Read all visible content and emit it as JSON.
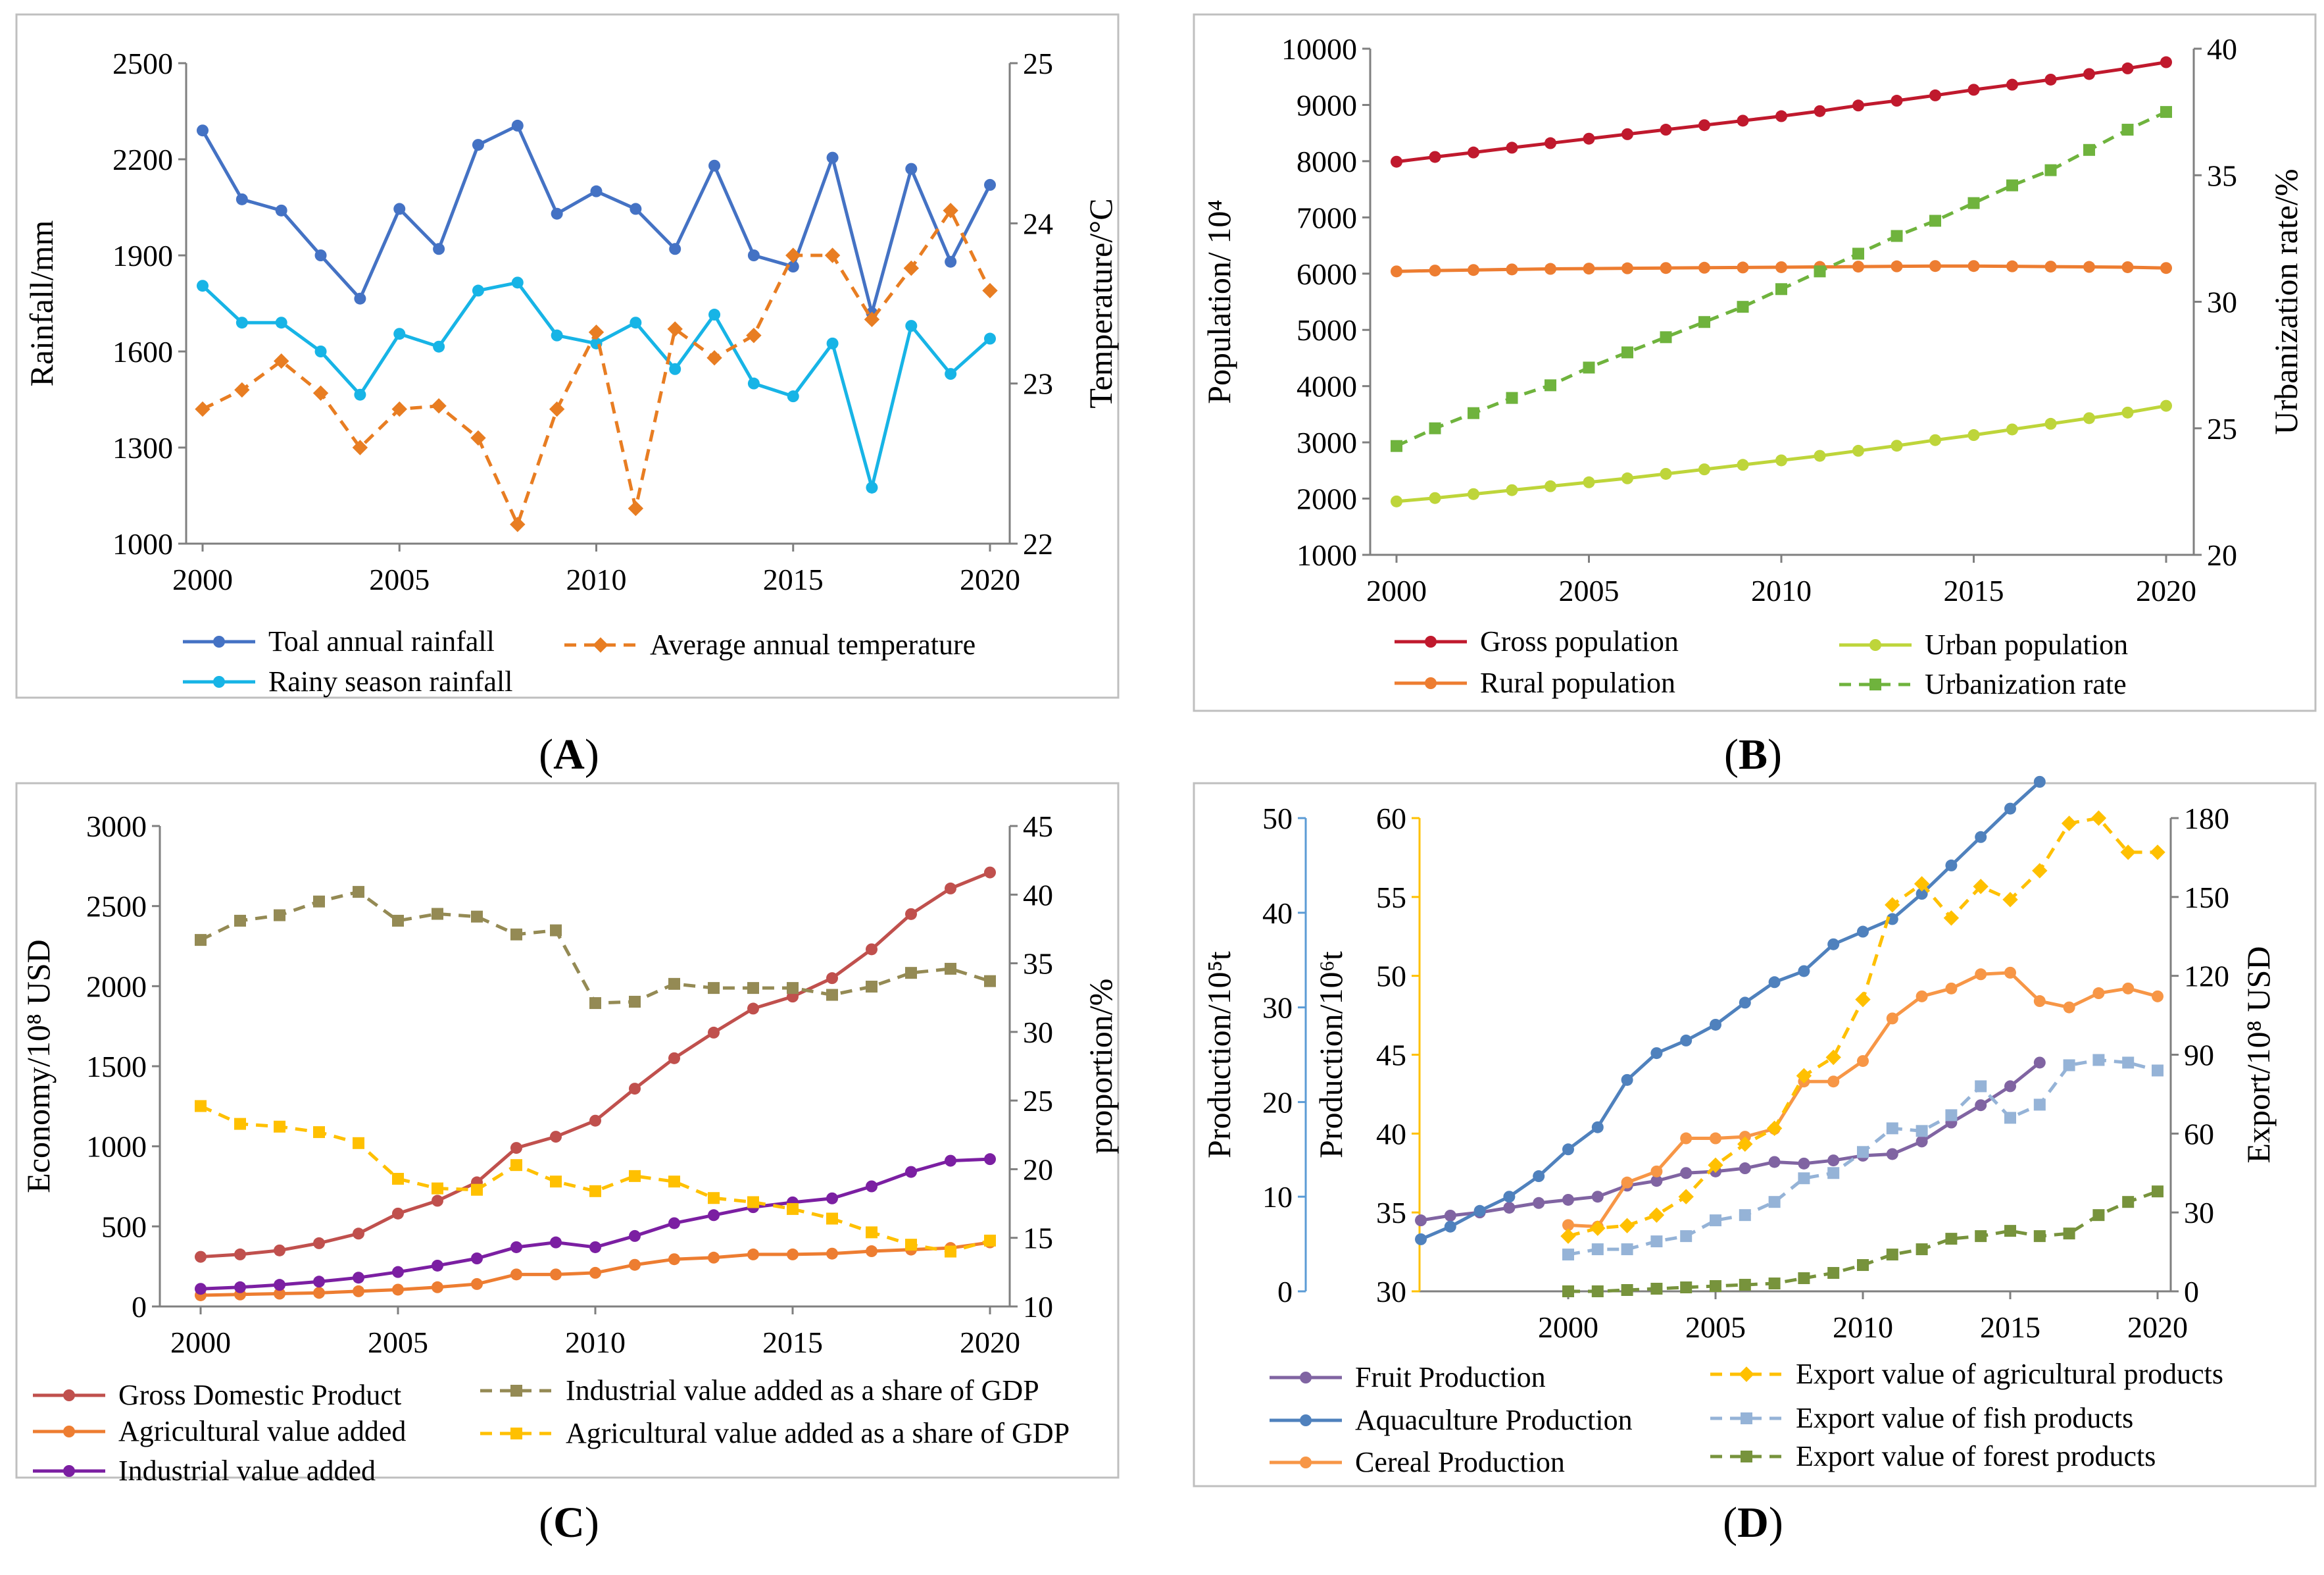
{
  "chart_data": [
    {
      "type": "line",
      "panel_label": "A",
      "x_ticks": [
        "2000",
        "2005",
        "2010",
        "2015",
        "2020"
      ],
      "xlim": [
        2000,
        2020
      ],
      "ylabel_left": "Rainfall/mm",
      "ylabel_right": "Temperature/°C",
      "ylim_left": [
        1000,
        2500
      ],
      "ylim_right": [
        22,
        25
      ],
      "yticks_left": [
        "1000",
        "1300",
        "1600",
        "1900",
        "2200",
        "2500"
      ],
      "yticks_right": [
        "22",
        "23",
        "24",
        "25"
      ],
      "x": [
        2000,
        2001,
        2002,
        2003,
        2004,
        2005,
        2006,
        2007,
        2008,
        2009,
        2010,
        2011,
        2012,
        2013,
        2014,
        2015,
        2016,
        2017,
        2018,
        2019,
        2020
      ],
      "series": [
        {
          "name": "Toal annual rainfall",
          "axis": "left",
          "color": "#4472c4",
          "dash": false,
          "marker": "circle",
          "values": [
            2290,
            2075,
            2040,
            1900,
            1765,
            2045,
            1920,
            2245,
            2305,
            2030,
            2100,
            2045,
            1920,
            2180,
            1900,
            1865,
            2205,
            1720,
            2170,
            1880,
            2120
          ]
        },
        {
          "name": "Rainy season rainfall",
          "axis": "left",
          "color": "#17b4e6",
          "dash": false,
          "marker": "circle",
          "values": [
            1805,
            1690,
            1690,
            1600,
            1465,
            1655,
            1615,
            1790,
            1815,
            1650,
            1625,
            1690,
            1545,
            1715,
            1500,
            1460,
            1625,
            1175,
            1680,
            1530,
            1640
          ]
        },
        {
          "name": "Average annual temperature",
          "axis": "right",
          "color": "#e87d22",
          "dash": true,
          "marker": "diamond",
          "values": [
            22.84,
            22.96,
            23.14,
            22.94,
            22.6,
            22.84,
            22.86,
            22.66,
            22.12,
            22.84,
            23.32,
            22.22,
            23.34,
            23.16,
            23.3,
            23.8,
            23.8,
            23.4,
            23.72,
            24.08,
            23.58
          ]
        }
      ],
      "legend": [
        {
          "name": "Toal annual rainfall",
          "color": "#4472c4",
          "dash": false,
          "marker": "circle"
        },
        {
          "name": "Average annual temperature",
          "color": "#e87d22",
          "dash": true,
          "marker": "diamond"
        },
        {
          "name": "Rainy season rainfall",
          "color": "#17b4e6",
          "dash": false,
          "marker": "circle"
        }
      ]
    },
    {
      "type": "line",
      "panel_label": "B",
      "x_ticks": [
        "2000",
        "2005",
        "2010",
        "2015",
        "2020"
      ],
      "xlim": [
        2000,
        2020
      ],
      "ylabel_left": "Population/ 10⁴",
      "ylabel_right": "Urbanization rate/%",
      "ylim_left": [
        1000,
        10000
      ],
      "ylim_right": [
        20,
        40
      ],
      "yticks_left": [
        "1000",
        "2000",
        "3000",
        "4000",
        "5000",
        "6000",
        "7000",
        "8000",
        "9000",
        "10000"
      ],
      "yticks_right": [
        "20",
        "25",
        "30",
        "35",
        "40"
      ],
      "x": [
        2000,
        2001,
        2002,
        2003,
        2004,
        2005,
        2006,
        2007,
        2008,
        2009,
        2010,
        2011,
        2012,
        2013,
        2014,
        2015,
        2016,
        2017,
        2018,
        2019,
        2020
      ],
      "series": [
        {
          "name": "Gross population",
          "axis": "left",
          "color": "#c0192d",
          "dash": false,
          "marker": "circle",
          "values": [
            7990,
            8075,
            8155,
            8240,
            8320,
            8400,
            8480,
            8560,
            8640,
            8720,
            8800,
            8890,
            8990,
            9075,
            9170,
            9270,
            9360,
            9450,
            9550,
            9650,
            9760
          ]
        },
        {
          "name": "Rural population",
          "axis": "left",
          "color": "#ed7d31",
          "dash": false,
          "marker": "circle",
          "values": [
            6040,
            6055,
            6065,
            6075,
            6085,
            6090,
            6095,
            6100,
            6105,
            6110,
            6115,
            6120,
            6125,
            6130,
            6135,
            6135,
            6130,
            6125,
            6120,
            6115,
            6100
          ]
        },
        {
          "name": "Urban population",
          "axis": "left",
          "color": "#bed53a",
          "dash": false,
          "marker": "circle",
          "values": [
            1950,
            2010,
            2080,
            2150,
            2220,
            2290,
            2360,
            2440,
            2520,
            2600,
            2680,
            2760,
            2850,
            2940,
            3040,
            3130,
            3230,
            3330,
            3430,
            3530,
            3650
          ]
        },
        {
          "name": "Urbanization rate",
          "axis": "right",
          "color": "#6fb33d",
          "dash": true,
          "marker": "square",
          "values": [
            24.3,
            25.0,
            25.6,
            26.2,
            26.7,
            27.4,
            28.0,
            28.6,
            29.2,
            29.8,
            30.5,
            31.2,
            31.9,
            32.6,
            33.2,
            33.9,
            34.6,
            35.2,
            36.0,
            36.8,
            37.5
          ]
        }
      ],
      "legend": [
        {
          "name": "Gross population",
          "color": "#c0192d",
          "dash": false,
          "marker": "circle"
        },
        {
          "name": "Urban population",
          "color": "#bed53a",
          "dash": false,
          "marker": "circle"
        },
        {
          "name": "Rural population",
          "color": "#ed7d31",
          "dash": false,
          "marker": "circle"
        },
        {
          "name": "Urbanization rate",
          "color": "#6fb33d",
          "dash": true,
          "marker": "square"
        }
      ]
    },
    {
      "type": "line",
      "panel_label": "C",
      "x_ticks": [
        "2000",
        "2005",
        "2010",
        "2015",
        "2020"
      ],
      "xlim": [
        2000,
        2020
      ],
      "ylabel_left": "Economy/10⁸ USD",
      "ylabel_right": "proportion/%",
      "ylim_left": [
        0,
        3000
      ],
      "ylim_right": [
        10,
        45
      ],
      "yticks_left": [
        "0",
        "500",
        "1000",
        "1500",
        "2000",
        "2500",
        "3000"
      ],
      "yticks_right": [
        "10",
        "15",
        "20",
        "25",
        "30",
        "35",
        "40",
        "45"
      ],
      "x": [
        2000,
        2001,
        2002,
        2003,
        2004,
        2005,
        2006,
        2007,
        2008,
        2009,
        2010,
        2011,
        2012,
        2013,
        2014,
        2015,
        2016,
        2017,
        2018,
        2019,
        2020
      ],
      "series": [
        {
          "name": "Gross Domestic Product",
          "axis": "left",
          "color": "#c0504d",
          "dash": false,
          "marker": "circle",
          "values": [
            310,
            325,
            350,
            395,
            455,
            580,
            660,
            775,
            990,
            1060,
            1160,
            1360,
            1550,
            1710,
            1860,
            1935,
            2050,
            2230,
            2450,
            2610,
            2710
          ]
        },
        {
          "name": "Agricultural value added",
          "axis": "left",
          "color": "#ed7d31",
          "dash": false,
          "marker": "circle",
          "values": [
            70,
            75,
            80,
            85,
            95,
            105,
            120,
            140,
            200,
            200,
            210,
            260,
            295,
            305,
            325,
            325,
            330,
            345,
            355,
            365,
            400
          ]
        },
        {
          "name": "Industrial value added",
          "axis": "left",
          "color": "#7b1fa2",
          "dash": false,
          "marker": "circle",
          "values": [
            110,
            120,
            135,
            155,
            180,
            215,
            255,
            300,
            370,
            400,
            370,
            440,
            520,
            570,
            620,
            650,
            675,
            750,
            840,
            910,
            920
          ]
        },
        {
          "name": "Industrial value added as a share of GDP",
          "axis": "right",
          "color": "#948a54",
          "dash": true,
          "marker": "square",
          "values": [
            36.7,
            38.1,
            38.5,
            39.5,
            40.2,
            38.1,
            38.6,
            38.4,
            37.1,
            37.4,
            32.1,
            32.2,
            33.5,
            33.2,
            33.2,
            33.2,
            32.7,
            33.3,
            34.3,
            34.6,
            33.7
          ]
        },
        {
          "name": "Agricultural value added as a share of GDP",
          "axis": "right",
          "color": "#ffc000",
          "dash": true,
          "marker": "square",
          "values": [
            24.6,
            23.3,
            23.1,
            22.7,
            21.9,
            19.3,
            18.6,
            18.5,
            20.3,
            19.1,
            18.4,
            19.5,
            19.1,
            17.9,
            17.6,
            17.1,
            16.4,
            15.4,
            14.5,
            14.0,
            14.8
          ]
        }
      ],
      "legend": [
        {
          "name": "Gross Domestic Product",
          "color": "#c0504d",
          "dash": false,
          "marker": "circle"
        },
        {
          "name": "Industrial value added as a share of GDP",
          "color": "#948a54",
          "dash": true,
          "marker": "square"
        },
        {
          "name": "Agricultural value added",
          "color": "#ed7d31",
          "dash": false,
          "marker": "circle"
        },
        {
          "name": "Agricultural value added as a share of GDP",
          "color": "#ffc000",
          "dash": true,
          "marker": "square"
        },
        {
          "name": "Industrial value added",
          "color": "#7b1fa2",
          "dash": false,
          "marker": "circle"
        }
      ]
    },
    {
      "type": "line",
      "panel_label": "D",
      "x_ticks": [
        "2000",
        "2005",
        "2010",
        "2015",
        "2020"
      ],
      "xlim": [
        1995,
        2020
      ],
      "ylabel_outer": "Production/10⁵t",
      "ylabel_inner": "Production/10⁶t",
      "ylabel_right": "Export/10⁸ USD",
      "ylim_outer": [
        0,
        50
      ],
      "ylim_inner": [
        30,
        60
      ],
      "ylim_right": [
        0,
        180
      ],
      "yticks_outer": [
        "0",
        "10",
        "20",
        "30",
        "40",
        "50"
      ],
      "yticks_inner": [
        "30",
        "35",
        "40",
        "45",
        "50",
        "55",
        "60"
      ],
      "yticks_right": [
        "0",
        "30",
        "60",
        "90",
        "120",
        "150",
        "180"
      ],
      "series": [
        {
          "name": "Fruit Production",
          "axis": "inner",
          "color": "#8064a2",
          "dash": false,
          "marker": "circle",
          "x": [
            1995,
            1996,
            1997,
            1998,
            1999,
            2000,
            2001,
            2002,
            2003,
            2004,
            2005,
            2006,
            2007,
            2008,
            2009,
            2010,
            2011,
            2012,
            2013,
            2014,
            2015,
            2016
          ],
          "values": [
            34.5,
            34.8,
            35.0,
            35.3,
            35.6,
            35.8,
            36.0,
            36.7,
            37.0,
            37.5,
            37.6,
            37.8,
            38.2,
            38.1,
            38.3,
            38.6,
            38.7,
            39.5,
            40.7,
            41.8,
            43.0,
            44.5
          ]
        },
        {
          "name": "Aquaculture Production",
          "axis": "inner",
          "color": "#4f81bd",
          "dash": false,
          "marker": "circle",
          "x": [
            1995,
            1996,
            1997,
            1998,
            1999,
            2000,
            2001,
            2002,
            2003,
            2004,
            2005,
            2006,
            2007,
            2008,
            2009,
            2010,
            2011,
            2012,
            2013,
            2014,
            2015,
            2016
          ],
          "values": [
            33.3,
            34.1,
            35.1,
            36.0,
            37.3,
            39.0,
            40.4,
            43.4,
            45.1,
            45.9,
            46.9,
            48.3,
            49.6,
            50.3,
            52.0,
            52.8,
            53.6,
            55.2,
            57.0,
            58.8,
            60.6,
            62.3
          ]
        },
        {
          "name": "Cereal Production",
          "axis": "inner",
          "color": "#f79646",
          "dash": false,
          "marker": "circle",
          "x": [
            2000,
            2001,
            2002,
            2003,
            2004,
            2005,
            2006,
            2007,
            2008,
            2009,
            2010,
            2011,
            2012,
            2013,
            2014,
            2015,
            2016,
            2017,
            2018,
            2019,
            2020
          ],
          "values": [
            34.2,
            34.1,
            36.9,
            37.6,
            39.7,
            39.7,
            39.8,
            40.3,
            43.3,
            43.3,
            44.6,
            47.3,
            48.7,
            49.2,
            50.1,
            50.2,
            48.4,
            48.0,
            48.9,
            49.2,
            48.7
          ]
        },
        {
          "name": "Export value of agricultural products",
          "axis": "right",
          "color": "#ffc000",
          "dash": true,
          "marker": "diamond",
          "x": [
            2000,
            2001,
            2002,
            2003,
            2004,
            2005,
            2006,
            2007,
            2008,
            2009,
            2010,
            2011,
            2012,
            2013,
            2014,
            2015,
            2016,
            2017,
            2018,
            2019,
            2020
          ],
          "values": [
            21,
            24,
            25,
            29,
            36,
            48,
            56,
            62,
            82,
            89,
            111,
            147,
            155,
            142,
            154,
            149,
            160,
            178,
            180,
            167,
            167
          ]
        },
        {
          "name": "Export value of fish products",
          "axis": "right",
          "color": "#95b3d7",
          "dash": true,
          "marker": "square",
          "x": [
            2000,
            2001,
            2002,
            2003,
            2004,
            2005,
            2006,
            2007,
            2008,
            2009,
            2010,
            2011,
            2012,
            2013,
            2014,
            2015,
            2016,
            2017,
            2018,
            2019,
            2020
          ],
          "values": [
            14,
            16,
            16,
            19,
            21,
            27,
            29,
            34,
            43,
            45,
            53,
            62,
            61,
            67,
            78,
            66,
            71,
            86,
            88,
            87,
            84
          ]
        },
        {
          "name": "Export value of forest products",
          "axis": "right",
          "color": "#77933c",
          "dash": true,
          "marker": "square",
          "x": [
            2000,
            2001,
            2002,
            2003,
            2004,
            2005,
            2006,
            2007,
            2008,
            2009,
            2010,
            2011,
            2012,
            2013,
            2014,
            2015,
            2016,
            2017,
            2018,
            2019,
            2020
          ],
          "values": [
            0,
            0,
            0.5,
            1,
            1.5,
            2,
            2.5,
            3,
            5,
            7,
            10,
            14,
            16,
            20,
            21,
            23,
            21,
            22,
            29,
            34,
            38
          ]
        }
      ],
      "legend": [
        {
          "name": "Fruit Production",
          "color": "#8064a2",
          "dash": false,
          "marker": "circle"
        },
        {
          "name": "Export value of agricultural products",
          "color": "#ffc000",
          "dash": true,
          "marker": "diamond"
        },
        {
          "name": "Aquaculture Production",
          "color": "#4f81bd",
          "dash": false,
          "marker": "circle"
        },
        {
          "name": "Export value of fish products",
          "color": "#95b3d7",
          "dash": true,
          "marker": "square"
        },
        {
          "name": "Cereal Production",
          "color": "#f79646",
          "dash": false,
          "marker": "circle"
        },
        {
          "name": "Export value of forest products",
          "color": "#77933c",
          "dash": true,
          "marker": "square"
        }
      ]
    }
  ]
}
